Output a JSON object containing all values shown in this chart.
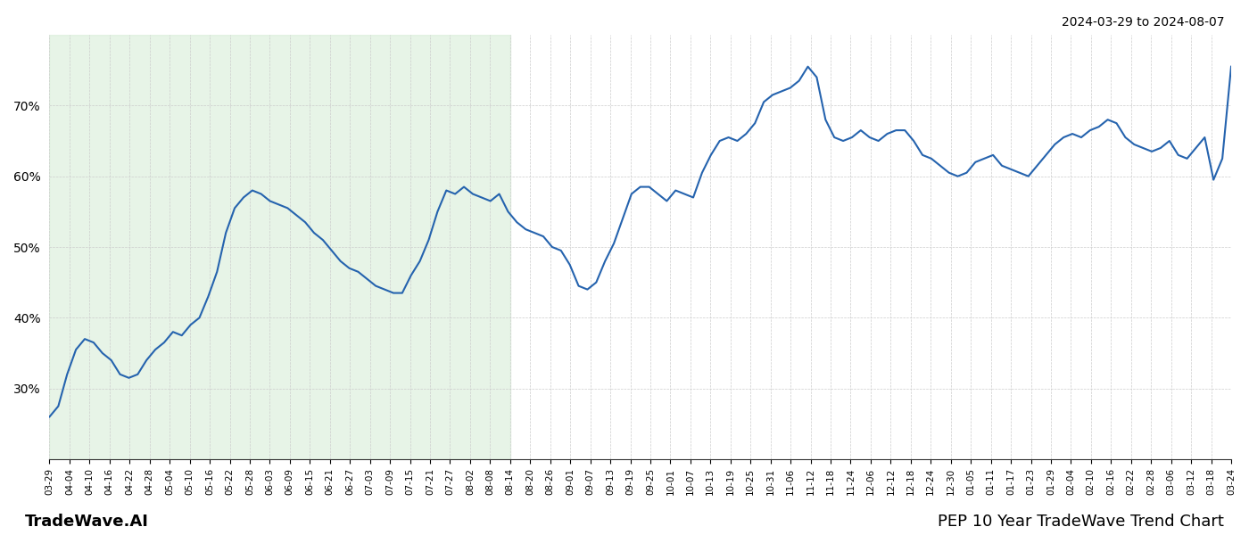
{
  "title_top_right": "2024-03-29 to 2024-08-07",
  "footer_left": "TradeWave.AI",
  "footer_right": "PEP 10 Year TradeWave Trend Chart",
  "line_color": "#2563ae",
  "line_width": 1.5,
  "shade_color": "#d4ecd4",
  "shade_alpha": 0.55,
  "background_color": "#ffffff",
  "grid_color": "#cccccc",
  "ylim": [
    20,
    80
  ],
  "yticks": [
    30,
    40,
    50,
    60,
    70
  ],
  "x_labels": [
    "03-29",
    "04-04",
    "04-10",
    "04-16",
    "04-22",
    "04-28",
    "05-04",
    "05-10",
    "05-16",
    "05-22",
    "05-28",
    "06-03",
    "06-09",
    "06-15",
    "06-21",
    "06-27",
    "07-03",
    "07-09",
    "07-15",
    "07-21",
    "07-27",
    "08-02",
    "08-08",
    "08-14",
    "08-20",
    "08-26",
    "09-01",
    "09-07",
    "09-13",
    "09-19",
    "09-25",
    "10-01",
    "10-07",
    "10-13",
    "10-19",
    "10-25",
    "10-31",
    "11-06",
    "11-12",
    "11-18",
    "11-24",
    "12-06",
    "12-12",
    "12-18",
    "12-24",
    "12-30",
    "01-05",
    "01-11",
    "01-17",
    "01-23",
    "01-29",
    "02-04",
    "02-10",
    "02-16",
    "02-22",
    "02-28",
    "03-06",
    "03-12",
    "03-18",
    "03-24"
  ],
  "shade_x_end_label": "08-14",
  "y_values": [
    26.0,
    27.5,
    32.0,
    35.5,
    37.0,
    36.5,
    35.0,
    34.0,
    32.0,
    31.5,
    32.0,
    34.0,
    35.5,
    36.5,
    38.0,
    37.5,
    39.0,
    40.0,
    43.0,
    46.5,
    52.0,
    55.5,
    57.0,
    58.0,
    57.5,
    56.5,
    56.0,
    55.5,
    54.5,
    53.5,
    52.0,
    51.0,
    49.5,
    48.0,
    47.0,
    46.5,
    45.5,
    44.5,
    44.0,
    43.5,
    43.5,
    46.0,
    48.0,
    51.0,
    55.0,
    58.0,
    57.5,
    58.5,
    57.5,
    57.0,
    56.5,
    57.5,
    55.0,
    53.5,
    52.5,
    52.0,
    51.5,
    50.0,
    49.5,
    47.5,
    44.5,
    44.0,
    45.0,
    48.0,
    50.5,
    54.0,
    57.5,
    58.5,
    58.5,
    57.5,
    56.5,
    58.0,
    57.5,
    57.0,
    60.5,
    63.0,
    65.0,
    65.5,
    65.0,
    66.0,
    67.5,
    70.5,
    71.5,
    72.0,
    72.5,
    73.5,
    75.5,
    74.0,
    68.0,
    65.5,
    65.0,
    65.5,
    66.5,
    65.5,
    65.0,
    66.0,
    66.5,
    66.5,
    65.0,
    63.0,
    62.5,
    61.5,
    60.5,
    60.0,
    60.5,
    62.0,
    62.5,
    63.0,
    61.5,
    61.0,
    60.5,
    60.0,
    61.5,
    63.0,
    64.5,
    65.5,
    66.0,
    65.5,
    66.5,
    67.0,
    68.0,
    67.5,
    65.5,
    64.5,
    64.0,
    63.5,
    64.0,
    65.0,
    63.0,
    62.5,
    64.0,
    65.5,
    59.5,
    62.5,
    75.5
  ]
}
